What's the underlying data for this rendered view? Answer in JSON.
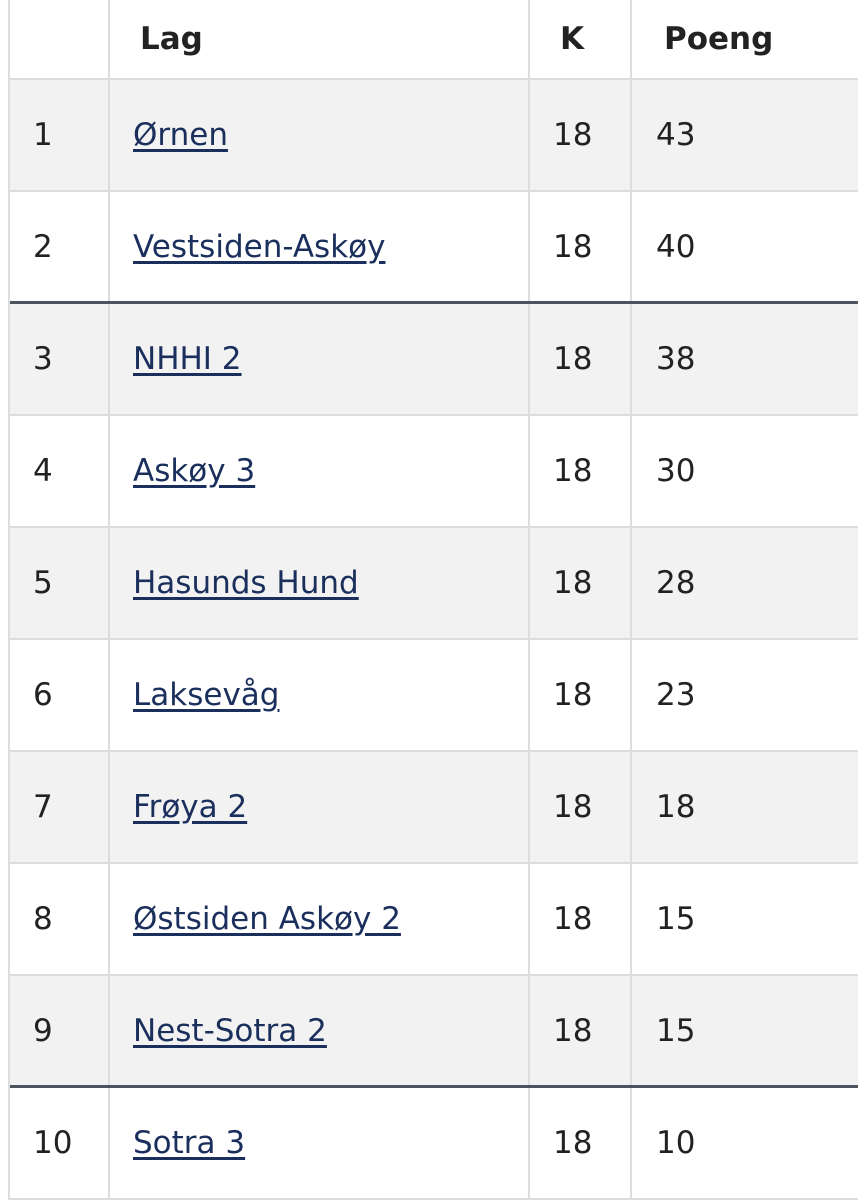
{
  "table": {
    "header": {
      "team": "Lag",
      "played": "K",
      "points": "Poeng"
    },
    "rows": [
      {
        "position": 1,
        "team": "Ørnen",
        "played": 18,
        "points": 43
      },
      {
        "position": 2,
        "team": "Vestsiden-Askøy",
        "played": 18,
        "points": 40
      },
      {
        "position": 3,
        "team": "NHHI 2",
        "played": 18,
        "points": 38
      },
      {
        "position": 4,
        "team": "Askøy 3",
        "played": 18,
        "points": 30
      },
      {
        "position": 5,
        "team": "Hasunds Hund",
        "played": 18,
        "points": 28
      },
      {
        "position": 6,
        "team": "Laksevåg",
        "played": 18,
        "points": 23
      },
      {
        "position": 7,
        "team": "Frøya 2",
        "played": 18,
        "points": 18
      },
      {
        "position": 8,
        "team": "Østsiden Askøy 2",
        "played": 18,
        "points": 15
      },
      {
        "position": 9,
        "team": "Nest-Sotra 2",
        "played": 18,
        "points": 15
      },
      {
        "position": 10,
        "team": "Sotra 3",
        "played": 18,
        "points": 10
      }
    ]
  }
}
